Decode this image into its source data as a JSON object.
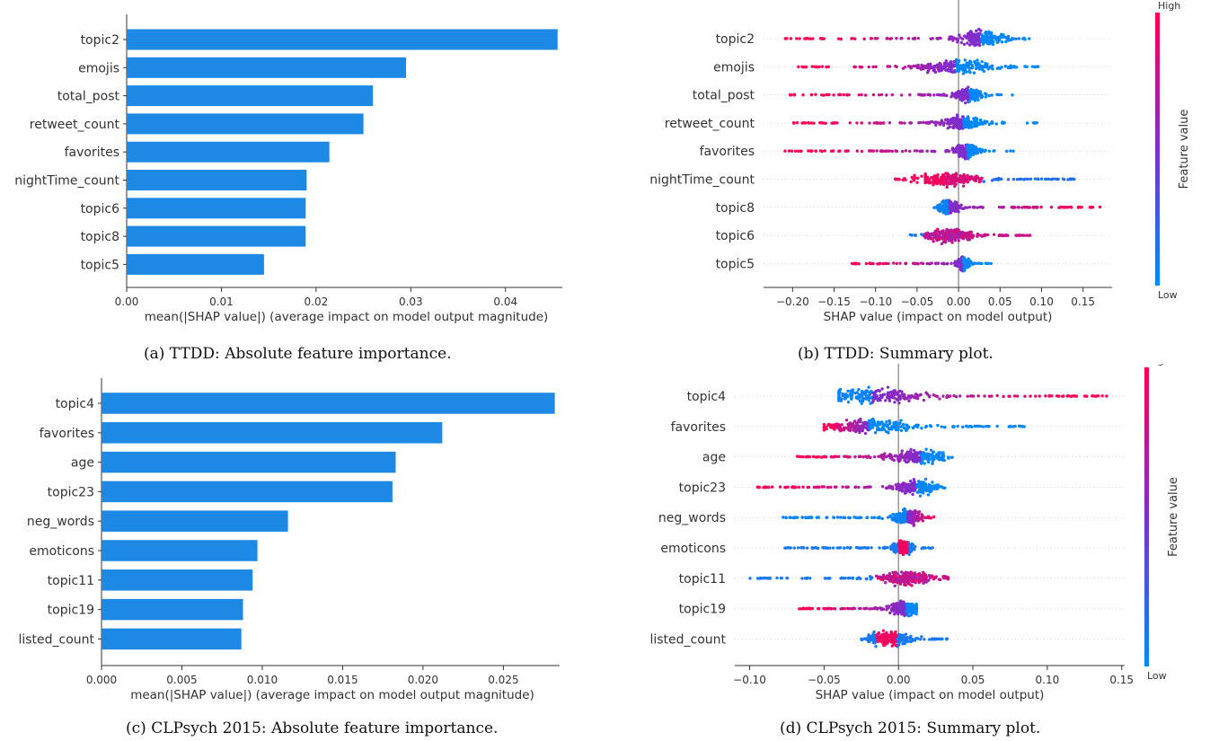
{
  "colors": {
    "bar": "#1E88E5",
    "low": "#008BFB",
    "high": "#FF0052",
    "axis": "#333333",
    "zero_line": "#999999"
  },
  "chart_data": [
    {
      "type": "bar",
      "orientation": "horizontal",
      "categories": [
        "topic2",
        "emojis",
        "total_post",
        "retweet_count",
        "favorites",
        "nightTime_count",
        "topic6",
        "topic8",
        "topic5"
      ],
      "values": [
        0.0455,
        0.0295,
        0.026,
        0.025,
        0.0214,
        0.019,
        0.0189,
        0.0189,
        0.0145
      ],
      "xlabel": "mean(|SHAP value|) (average impact on model output magnitude)",
      "xlim": [
        0,
        0.046
      ],
      "xticks": [
        0.0,
        0.01,
        0.02,
        0.03,
        0.04
      ],
      "xtick_labels": [
        "0.00",
        "0.01",
        "0.02",
        "0.03",
        "0.04"
      ],
      "grid": false,
      "caption": "(a) TTDD: Absolute feature importance."
    },
    {
      "type": "scatter",
      "subtype": "shap-summary-violin",
      "categories": [
        "topic2",
        "emojis",
        "total_post",
        "retweet_count",
        "favorites",
        "nightTime_count",
        "topic8",
        "topic6",
        "topic5"
      ],
      "ranges": [
        [
          -0.22,
          0.09
        ],
        [
          -0.195,
          0.105
        ],
        [
          -0.205,
          0.065
        ],
        [
          -0.2,
          0.097
        ],
        [
          -0.21,
          0.07
        ],
        [
          -0.08,
          0.14
        ],
        [
          -0.03,
          0.175
        ],
        [
          -0.06,
          0.093
        ],
        [
          -0.13,
          0.042
        ]
      ],
      "centers": [
        0.027,
        -0.004,
        0.012,
        0.005,
        0.01,
        -0.015,
        -0.012,
        -0.01,
        0.005
      ],
      "bulk": [
        [
          -0.02,
          0.06
        ],
        [
          -0.06,
          0.06
        ],
        [
          -0.01,
          0.035
        ],
        [
          -0.03,
          0.04
        ],
        [
          -0.01,
          0.03
        ],
        [
          -0.04,
          0.06
        ],
        [
          -0.025,
          0.01
        ],
        [
          -0.04,
          0.04
        ],
        [
          -0.005,
          0.015
        ]
      ],
      "high_side": [
        "left",
        "left",
        "left",
        "left",
        "left",
        "mixed-left",
        "right",
        "mixed",
        "left"
      ],
      "xlabel": "SHAP value (impact on model output)",
      "xlim": [
        -0.235,
        0.185
      ],
      "xticks": [
        -0.2,
        -0.15,
        -0.1,
        -0.05,
        0.0,
        0.05,
        0.1,
        0.15
      ],
      "xtick_labels": [
        "−0.20",
        "−0.15",
        "−0.10",
        "−0.05",
        "0.00",
        "0.05",
        "0.10",
        "0.15"
      ],
      "colorbar": {
        "label": "Feature value",
        "high": "High",
        "low": "Low"
      },
      "caption": "(b) TTDD: Summary plot."
    },
    {
      "type": "bar",
      "orientation": "horizontal",
      "categories": [
        "topic4",
        "favorites",
        "age",
        "topic23",
        "neg_words",
        "emoticons",
        "topic11",
        "topic19",
        "listed_count"
      ],
      "values": [
        0.0282,
        0.0212,
        0.0183,
        0.0181,
        0.0116,
        0.0097,
        0.0094,
        0.0088,
        0.0087
      ],
      "xlabel": "mean(|SHAP value|) (average impact on model output magnitude)",
      "xlim": [
        0,
        0.0285
      ],
      "xticks": [
        0.0,
        0.005,
        0.01,
        0.015,
        0.02,
        0.025
      ],
      "xtick_labels": [
        "0.000",
        "0.005",
        "0.010",
        "0.015",
        "0.020",
        "0.025"
      ],
      "grid": false,
      "caption": "(c) CLPsych 2015: Absolute feature importance."
    },
    {
      "type": "scatter",
      "subtype": "shap-summary-violin",
      "categories": [
        "topic4",
        "favorites",
        "age",
        "topic23",
        "neg_words",
        "emoticons",
        "topic11",
        "topic19",
        "listed_count"
      ],
      "ranges": [
        [
          -0.042,
          0.14
        ],
        [
          -0.052,
          0.087
        ],
        [
          -0.07,
          0.037
        ],
        [
          -0.095,
          0.032
        ],
        [
          -0.078,
          0.025
        ],
        [
          -0.08,
          0.024
        ],
        [
          -0.1,
          0.034
        ],
        [
          -0.07,
          0.012
        ],
        [
          -0.025,
          0.033
        ]
      ],
      "centers": [
        -0.018,
        -0.02,
        0.015,
        0.012,
        0.006,
        0.003,
        0.005,
        0.005,
        -0.008
      ],
      "bulk": [
        [
          -0.04,
          0.06
        ],
        [
          -0.05,
          0.04
        ],
        [
          -0.03,
          0.03
        ],
        [
          -0.01,
          0.03
        ],
        [
          -0.01,
          0.02
        ],
        [
          -0.005,
          0.015
        ],
        [
          -0.025,
          0.025
        ],
        [
          -0.02,
          0.012
        ],
        [
          -0.02,
          0.025
        ]
      ],
      "high_side": [
        "right",
        "left",
        "left",
        "left",
        "right",
        "center",
        "mixed",
        "left",
        "center"
      ],
      "xlabel": "SHAP value (impact on model output)",
      "xlim": [
        -0.11,
        0.152
      ],
      "xticks": [
        -0.1,
        -0.05,
        0.0,
        0.05,
        0.1,
        0.15
      ],
      "xtick_labels": [
        "−0.10",
        "−0.05",
        "0.00",
        "0.05",
        "0.10",
        "0.15"
      ],
      "colorbar": {
        "label": "Feature value",
        "high": "High",
        "low": "Low"
      },
      "caption": "(d) CLPsych 2015: Summary plot."
    }
  ]
}
